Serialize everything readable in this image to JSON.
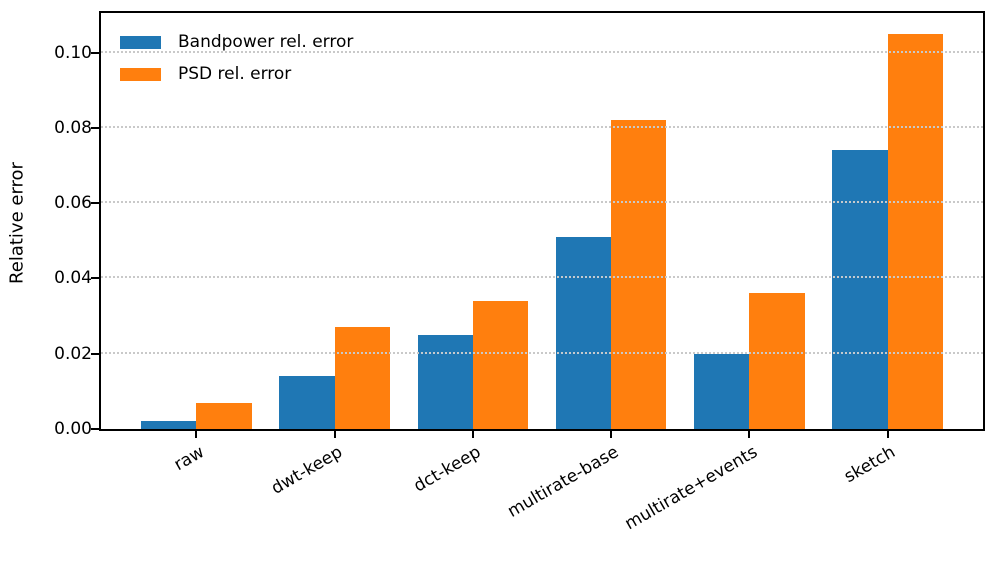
{
  "chart_data": {
    "type": "bar",
    "title": "",
    "xlabel": "",
    "ylabel": "Relative error",
    "categories": [
      "raw",
      "dwt-keep",
      "dct-keep",
      "multirate-base",
      "multirate+events",
      "sketch"
    ],
    "series": [
      {
        "name": "Bandpower rel. error",
        "color": "#1f77b4",
        "values": [
          0.002,
          0.014,
          0.025,
          0.051,
          0.02,
          0.074
        ]
      },
      {
        "name": "PSD rel. error",
        "color": "#ff7f0e",
        "values": [
          0.007,
          0.027,
          0.034,
          0.082,
          0.036,
          0.105
        ]
      }
    ],
    "series_keys": [
      "bandpower",
      "psd"
    ],
    "ylim": [
      0,
      0.1105
    ],
    "yticks": [
      0,
      0.02,
      0.04,
      0.06,
      0.08,
      0.1
    ],
    "ytick_labels": [
      "0.00",
      "0.02",
      "0.04",
      "0.06",
      "0.08",
      "0.10"
    ],
    "grid": "horizontal-dotted-above-bars",
    "gridline_color": "#c9c9c9",
    "legend_position": "upper-left",
    "legend_frame": false,
    "xtick_rotation_deg": 30,
    "bar_group_width_fraction": 0.8
  }
}
